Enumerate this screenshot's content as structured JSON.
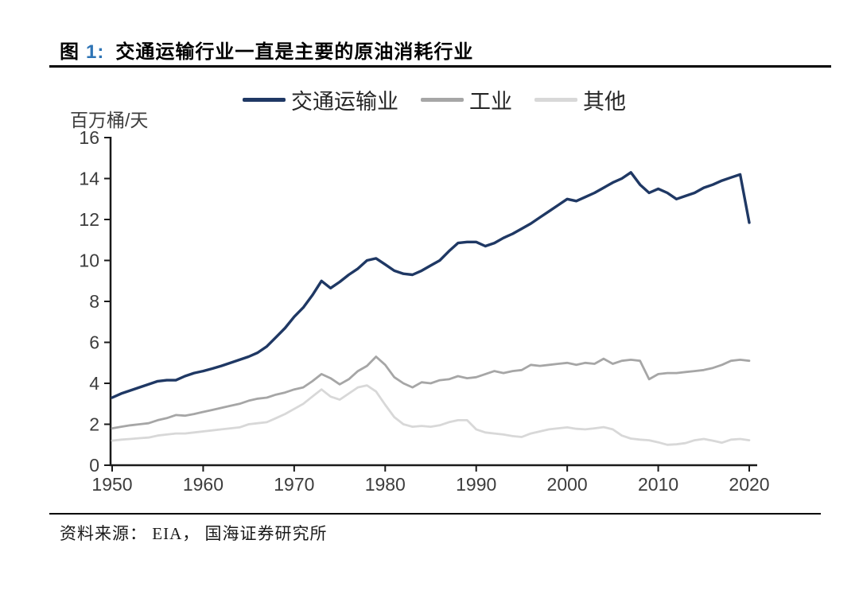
{
  "title": {
    "prefix": "图",
    "number": "1:",
    "text": "交通运输行业一直是主要的原油消耗行业"
  },
  "footer": {
    "source": "资料来源： EIA， 国海证券研究所"
  },
  "colors": {
    "accent_number": "#2e74b5",
    "axis": "#1a1a1a",
    "tick_label": "#3d3d3d",
    "transport_line": "#1f3864",
    "industry_line": "#a6a6a6",
    "other_line": "#d8d8d8"
  },
  "chart_data": {
    "type": "line",
    "title": "交通运输行业一直是主要的原油消耗行业",
    "xlabel": "",
    "ylabel": "百万桶/天",
    "grid": false,
    "legend_position": "top",
    "x_min": 1950,
    "x_max": 2020,
    "x_step": 1,
    "y_min": 0,
    "y_max": 16,
    "x_ticks": [
      1950,
      1960,
      1970,
      1980,
      1990,
      2000,
      2010,
      2020
    ],
    "y_ticks": [
      0,
      2,
      4,
      6,
      8,
      10,
      12,
      14,
      16
    ],
    "years": [
      1950,
      1951,
      1952,
      1953,
      1954,
      1955,
      1956,
      1957,
      1958,
      1959,
      1960,
      1961,
      1962,
      1963,
      1964,
      1965,
      1966,
      1967,
      1968,
      1969,
      1970,
      1971,
      1972,
      1973,
      1974,
      1975,
      1976,
      1977,
      1978,
      1979,
      1980,
      1981,
      1982,
      1983,
      1984,
      1985,
      1986,
      1987,
      1988,
      1989,
      1990,
      1991,
      1992,
      1993,
      1994,
      1995,
      1996,
      1997,
      1998,
      1999,
      2000,
      2001,
      2002,
      2003,
      2004,
      2005,
      2006,
      2007,
      2008,
      2009,
      2010,
      2011,
      2012,
      2013,
      2014,
      2015,
      2016,
      2017,
      2018,
      2019,
      2020
    ],
    "series": [
      {
        "name": "交通运输业",
        "color": "#1f3864",
        "width": 3.4,
        "values": [
          3.3,
          3.5,
          3.65,
          3.8,
          3.95,
          4.1,
          4.15,
          4.15,
          4.35,
          4.5,
          4.6,
          4.72,
          4.85,
          5.0,
          5.15,
          5.3,
          5.5,
          5.8,
          6.25,
          6.7,
          7.25,
          7.7,
          8.3,
          9.0,
          8.65,
          8.95,
          9.3,
          9.6,
          10.0,
          10.1,
          9.8,
          9.5,
          9.35,
          9.3,
          9.5,
          9.75,
          10.0,
          10.45,
          10.85,
          10.9,
          10.9,
          10.7,
          10.85,
          11.1,
          11.3,
          11.55,
          11.8,
          12.1,
          12.4,
          12.7,
          13.0,
          12.9,
          13.1,
          13.3,
          13.55,
          13.8,
          14.0,
          14.3,
          13.7,
          13.3,
          13.5,
          13.3,
          13.0,
          13.15,
          13.3,
          13.55,
          13.7,
          13.9,
          14.05,
          14.2,
          11.85
        ]
      },
      {
        "name": "工业",
        "color": "#a6a6a6",
        "width": 2.8,
        "values": [
          1.8,
          1.88,
          1.95,
          2.0,
          2.05,
          2.2,
          2.3,
          2.45,
          2.42,
          2.5,
          2.6,
          2.7,
          2.8,
          2.9,
          3.0,
          3.15,
          3.25,
          3.3,
          3.45,
          3.55,
          3.7,
          3.8,
          4.1,
          4.45,
          4.25,
          3.95,
          4.2,
          4.6,
          4.85,
          5.3,
          4.9,
          4.3,
          4.0,
          3.8,
          4.05,
          4.0,
          4.15,
          4.2,
          4.35,
          4.25,
          4.3,
          4.45,
          4.6,
          4.5,
          4.6,
          4.65,
          4.9,
          4.85,
          4.9,
          4.95,
          5.0,
          4.9,
          5.0,
          4.95,
          5.2,
          4.95,
          5.1,
          5.15,
          5.1,
          4.2,
          4.45,
          4.5,
          4.5,
          4.55,
          4.6,
          4.65,
          4.75,
          4.9,
          5.1,
          5.15,
          5.1
        ]
      },
      {
        "name": "其他",
        "color": "#d8d8d8",
        "width": 2.8,
        "values": [
          1.2,
          1.25,
          1.28,
          1.32,
          1.35,
          1.45,
          1.5,
          1.55,
          1.55,
          1.6,
          1.65,
          1.7,
          1.75,
          1.8,
          1.85,
          2.0,
          2.05,
          2.1,
          2.3,
          2.5,
          2.75,
          3.0,
          3.35,
          3.7,
          3.35,
          3.2,
          3.5,
          3.8,
          3.9,
          3.6,
          2.95,
          2.35,
          2.0,
          1.88,
          1.92,
          1.88,
          1.95,
          2.1,
          2.2,
          2.2,
          1.75,
          1.6,
          1.55,
          1.5,
          1.42,
          1.38,
          1.55,
          1.65,
          1.75,
          1.8,
          1.85,
          1.78,
          1.75,
          1.8,
          1.86,
          1.75,
          1.45,
          1.3,
          1.25,
          1.22,
          1.12,
          1.0,
          1.02,
          1.08,
          1.22,
          1.28,
          1.2,
          1.1,
          1.25,
          1.28,
          1.22
        ]
      }
    ]
  }
}
